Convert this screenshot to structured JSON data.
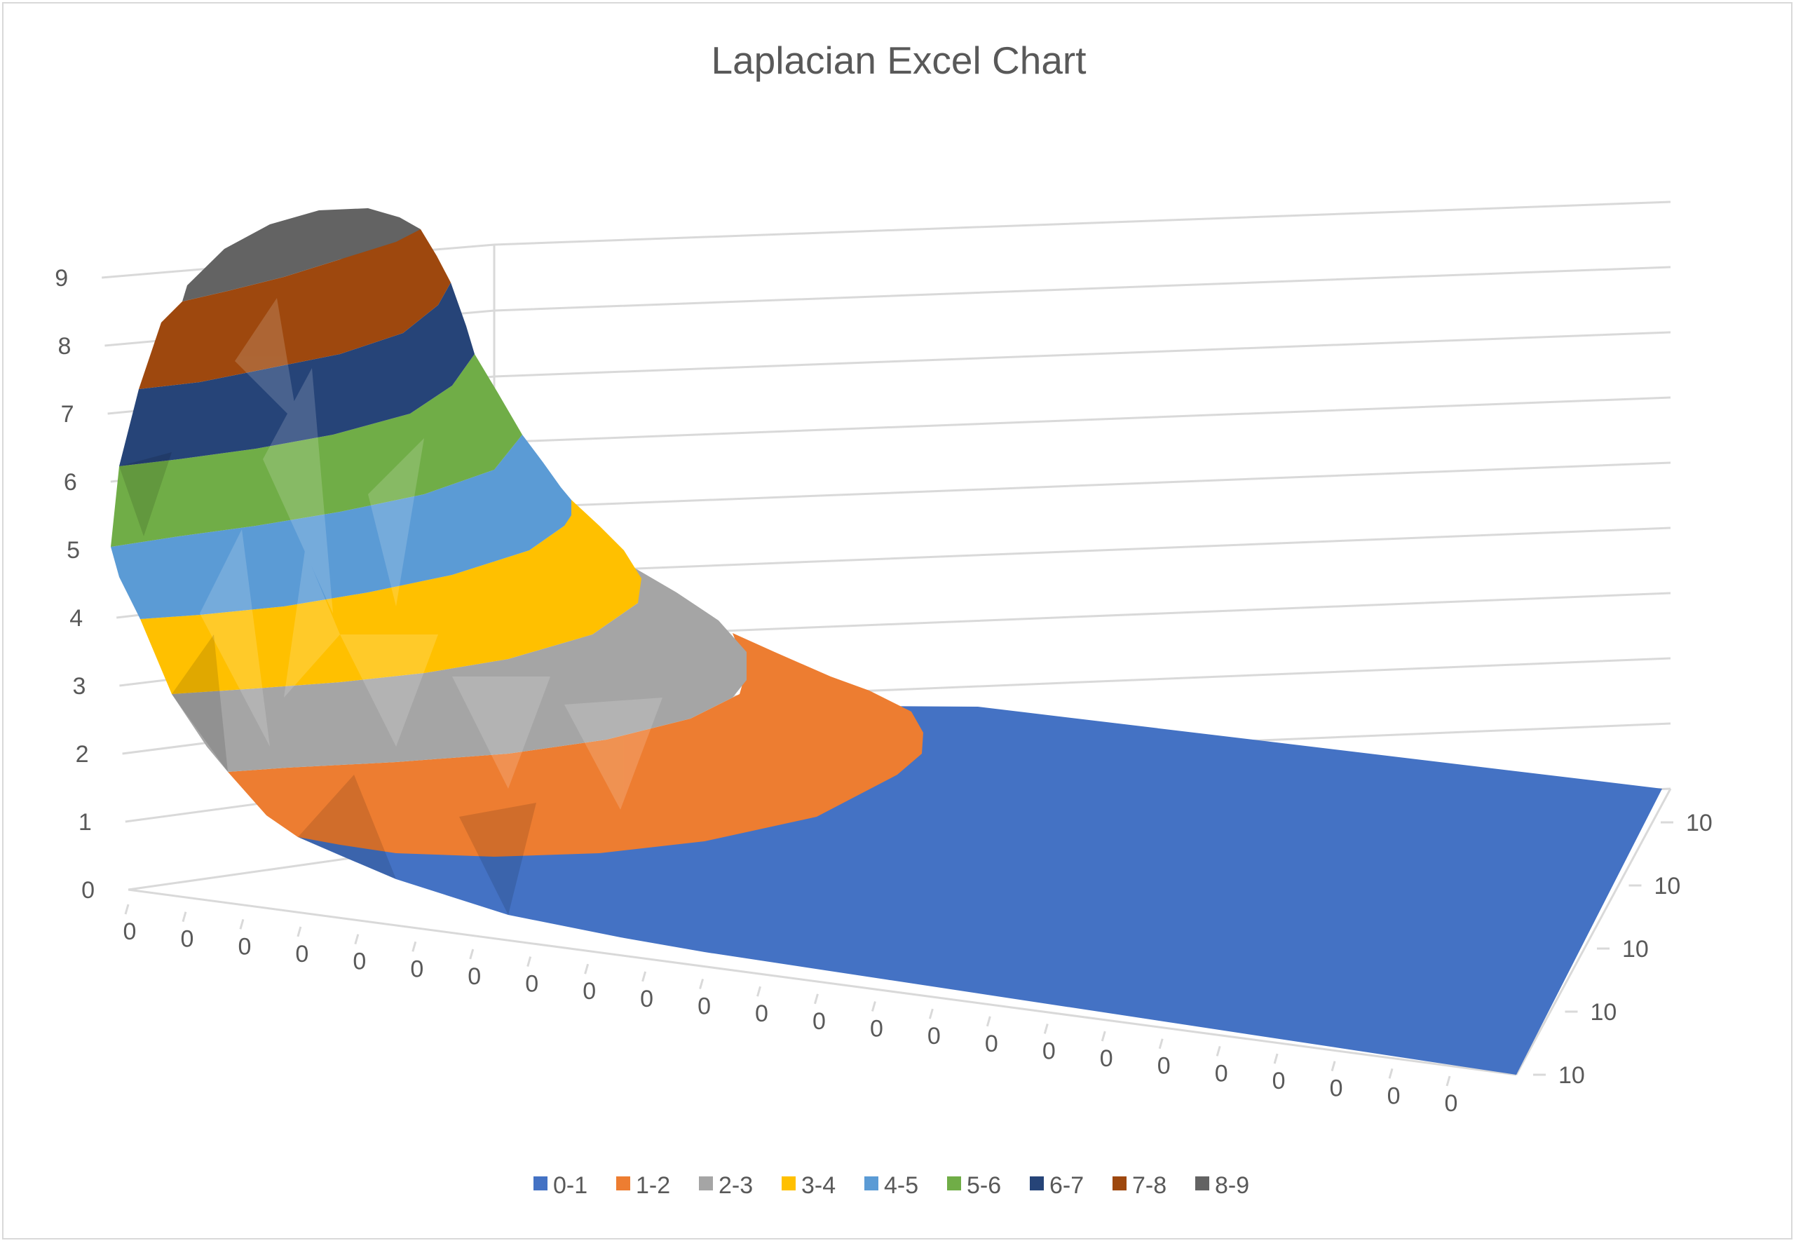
{
  "chart_data": {
    "type": "surface",
    "title": "Laplacian Excel Chart",
    "z_axis": {
      "ticks": [
        "0",
        "1",
        "2",
        "3",
        "4",
        "5",
        "6",
        "7",
        "8",
        "9"
      ],
      "range": [
        0,
        9
      ]
    },
    "x_axis": {
      "tick_labels": [
        "0",
        "0",
        "0",
        "0",
        "0",
        "0",
        "0",
        "0",
        "0",
        "0",
        "0",
        "0",
        "0",
        "0",
        "0",
        "0",
        "0",
        "0",
        "0",
        "0",
        "0",
        "0",
        "0",
        "0"
      ]
    },
    "y_axis": {
      "tick_labels": [
        "10",
        "10",
        "10",
        "10",
        "10"
      ]
    },
    "legend": {
      "position": "bottom",
      "entries": [
        {
          "label": "0-1",
          "color": "#4472C4"
        },
        {
          "label": "1-2",
          "color": "#ED7D31"
        },
        {
          "label": "2-3",
          "color": "#A5A5A5"
        },
        {
          "label": "3-4",
          "color": "#FFC000"
        },
        {
          "label": "4-5",
          "color": "#5B9BD5"
        },
        {
          "label": "5-6",
          "color": "#70AD47"
        },
        {
          "label": "6-7",
          "color": "#264478"
        },
        {
          "label": "7-8",
          "color": "#9E480E"
        },
        {
          "label": "8-9",
          "color": "#636363"
        }
      ]
    },
    "gridlines": true,
    "surface_peak_value": 9
  }
}
